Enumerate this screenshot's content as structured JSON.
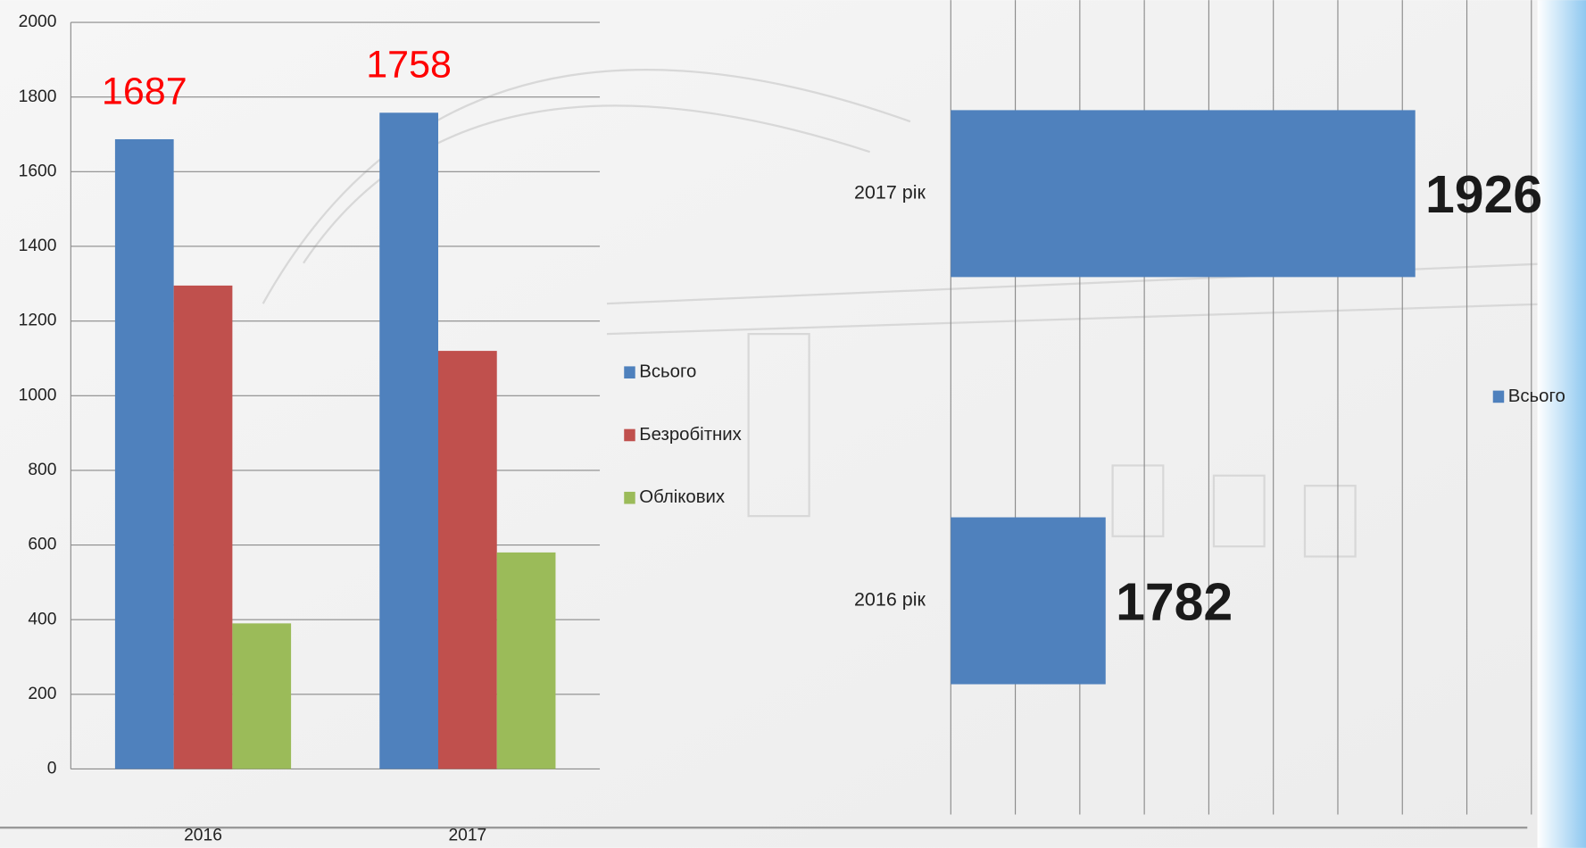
{
  "chart_data": [
    {
      "type": "bar",
      "categories": [
        "2016",
        "2017"
      ],
      "series": [
        {
          "name": "Всього",
          "color": "#4f81bd",
          "values": [
            1687,
            1758
          ],
          "show_labels": true
        },
        {
          "name": "Безробітних",
          "color": "#c0504d",
          "values": [
            1295,
            1120
          ]
        },
        {
          "name": "Облікових",
          "color": "#9bbb59",
          "values": [
            390,
            580
          ]
        }
      ],
      "label_color": "#ff0000",
      "ylim": [
        0,
        2000
      ],
      "yticks": [
        0,
        200,
        400,
        600,
        800,
        1000,
        1200,
        1400,
        1600,
        1800,
        2000
      ],
      "grid": true,
      "legend": "right"
    },
    {
      "type": "barh",
      "categories": [
        "2016 рік",
        "2017 рік"
      ],
      "series": [
        {
          "name": "Всього",
          "color": "#4f81bd",
          "values": [
            1782,
            1926
          ]
        }
      ],
      "label_color": "#1a1a1a",
      "xlim": [
        1710,
        1980
      ],
      "xticks": [
        1710,
        1740,
        1770,
        1800,
        1830,
        1860,
        1890,
        1920,
        1950,
        1980
      ],
      "grid": true,
      "legend": "right"
    }
  ]
}
